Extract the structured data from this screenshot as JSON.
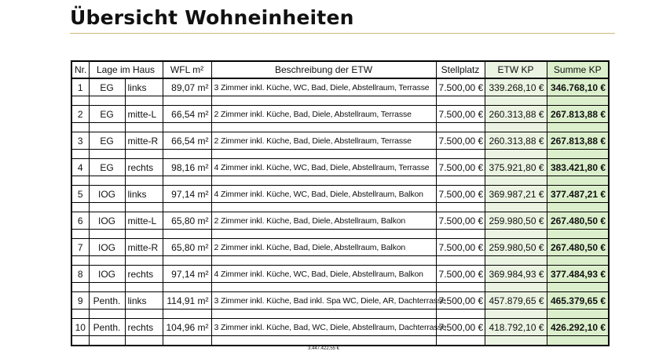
{
  "title": "Übersicht Wohneinheiten",
  "headers": {
    "nr": "Nr.",
    "lage": "Lage im Haus",
    "wfl": "WFL m²",
    "beschreibung": "Beschreibung der ETW",
    "stellplatz": "Stellplatz",
    "etw_kp": "ETW KP",
    "summe_kp": "Summe KP"
  },
  "rows": [
    {
      "nr": "1",
      "etage": "EG",
      "pos": "links",
      "wfl": "89,07 m²",
      "desc": "3 Zimmer inkl. Küche, WC, Bad, Diele, Abstellraum, Terrasse",
      "stellplatz": "7.500,00 €",
      "etw_kp": "339.268,10 €",
      "summe_kp": "346.768,10 €"
    },
    {
      "nr": "2",
      "etage": "EG",
      "pos": "mitte-L",
      "wfl": "66,54 m²",
      "desc": "2 Zimmer inkl. Küche, Bad, Diele, Abstellraum, Terrasse",
      "stellplatz": "7.500,00 €",
      "etw_kp": "260.313,88 €",
      "summe_kp": "267.813,88 €"
    },
    {
      "nr": "3",
      "etage": "EG",
      "pos": "mitte-R",
      "wfl": "66,54 m²",
      "desc": "2 Zimmer inkl. Küche, Bad, Diele, Abstellraum, Terrasse",
      "stellplatz": "7.500,00 €",
      "etw_kp": "260.313,88 €",
      "summe_kp": "267.813,88 €"
    },
    {
      "nr": "4",
      "etage": "EG",
      "pos": "rechts",
      "wfl": "98,16 m²",
      "desc": "4 Zimmer inkl. Küche, WC, Bad, Diele, Abstellraum, Terrasse",
      "stellplatz": "7.500,00 €",
      "etw_kp": "375.921,80 €",
      "summe_kp": "383.421,80 €"
    },
    {
      "nr": "5",
      "etage": "IOG",
      "pos": "links",
      "wfl": "97,14 m²",
      "desc": "4 Zimmer inkl. Küche, WC, Bad, Diele, Abstellraum, Balkon",
      "stellplatz": "7.500,00 €",
      "etw_kp": "369.987,21 €",
      "summe_kp": "377.487,21 €"
    },
    {
      "nr": "6",
      "etage": "IOG",
      "pos": "mitte-L",
      "wfl": "65,80 m²",
      "desc": "2 Zimmer inkl. Küche, Bad, Diele, Abstellraum, Balkon",
      "stellplatz": "7.500,00 €",
      "etw_kp": "259.980,50 €",
      "summe_kp": "267.480,50 €"
    },
    {
      "nr": "7",
      "etage": "IOG",
      "pos": "mitte-R",
      "wfl": "65,80 m²",
      "desc": "2 Zimmer inkl. Küche, Bad, Diele, Abstellraum, Balkon",
      "stellplatz": "7.500,00 €",
      "etw_kp": "259.980,50 €",
      "summe_kp": "267.480,50 €"
    },
    {
      "nr": "8",
      "etage": "IOG",
      "pos": "rechts",
      "wfl": "97,14 m²",
      "desc": "4 Zimmer inkl. Küche, WC, Bad, Diele, Abstellraum, Balkon",
      "stellplatz": "7.500,00 €",
      "etw_kp": "369.984,93 €",
      "summe_kp": "377.484,93 €"
    },
    {
      "nr": "9",
      "etage": "Penth.",
      "pos": "links",
      "wfl": "114,91 m²",
      "desc": "3 Zimmer inkl. Küche, Bad inkl. Spa WC, Diele, AR, Dachterrasse",
      "stellplatz": "7.500,00 €",
      "etw_kp": "457.879,65 €",
      "summe_kp": "465.379,65 €"
    },
    {
      "nr": "10",
      "etage": "Penth.",
      "pos": "rechts",
      "wfl": "104,96 m²",
      "desc": "3 Zimmer inkl. Küche, Bad, WC, Diele, Abstellraum, Dachterrasse",
      "stellplatz": "7.500,00 €",
      "etw_kp": "418.792,10 €",
      "summe_kp": "426.292,10 €"
    }
  ],
  "total": "3.447.422,55 €"
}
